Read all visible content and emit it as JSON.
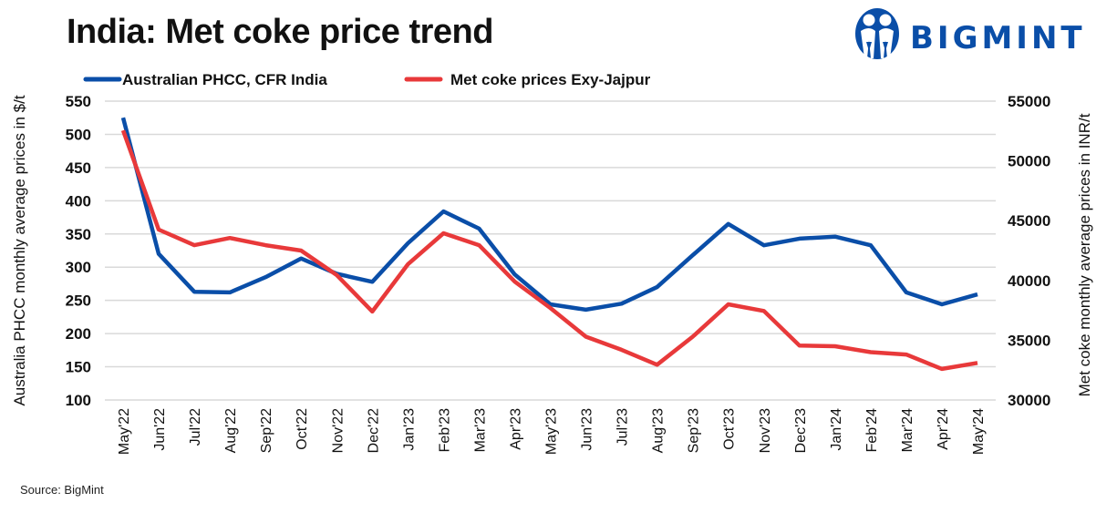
{
  "header": {
    "title": "India: Met coke price trend",
    "brand": "BIGMINT",
    "brand_color": "#0a4ea8"
  },
  "footer": {
    "source": "Source: BigMint"
  },
  "chart_data": {
    "type": "line",
    "title": "India: Met coke price trend",
    "categories": [
      "May'22",
      "Jun'22",
      "Jul'22",
      "Aug'22",
      "Sep'22",
      "Oct'22",
      "Nov'22",
      "Dec'22",
      "Jan'23",
      "Feb'23",
      "Mar'23",
      "Apr'23",
      "May'23",
      "Jun'23",
      "Jul'23",
      "Aug'23",
      "Sep'23",
      "Oct'23",
      "Nov'23",
      "Dec'23",
      "Jan'24",
      "Feb'24",
      "Mar'24",
      "Apr'24",
      "May'24"
    ],
    "ylabel_left": "Australia PHCC monthly average prices in $/t",
    "ylabel_right": "Met coke monthly average prices in INR/t",
    "ylim_left": [
      100,
      550
    ],
    "ylim_right": [
      30000,
      55000
    ],
    "yticks_left": [
      100,
      150,
      200,
      250,
      300,
      350,
      400,
      450,
      500,
      550
    ],
    "yticks_right": [
      30000,
      35000,
      40000,
      45000,
      50000,
      55000
    ],
    "grid": true,
    "legend_position": "top",
    "series": [
      {
        "name": "Australian PHCC, CFR India",
        "axis": "left",
        "color": "#0a4ea8",
        "values": [
          525,
          320,
          263,
          262,
          285,
          313,
          290,
          278,
          336,
          384,
          358,
          289,
          244,
          236,
          245,
          270,
          318,
          365,
          333,
          343,
          346,
          333,
          262,
          244,
          259
        ]
      },
      {
        "name": "Met coke prices Exy-Jajpur",
        "axis": "right",
        "color": "#e8393a",
        "values": [
          52550,
          44250,
          42950,
          43550,
          42950,
          42500,
          40450,
          37400,
          41350,
          43950,
          42950,
          39900,
          37700,
          35300,
          34200,
          32950,
          35300,
          38000,
          37450,
          34550,
          34500,
          34000,
          33800,
          32600,
          33100
        ]
      }
    ]
  }
}
